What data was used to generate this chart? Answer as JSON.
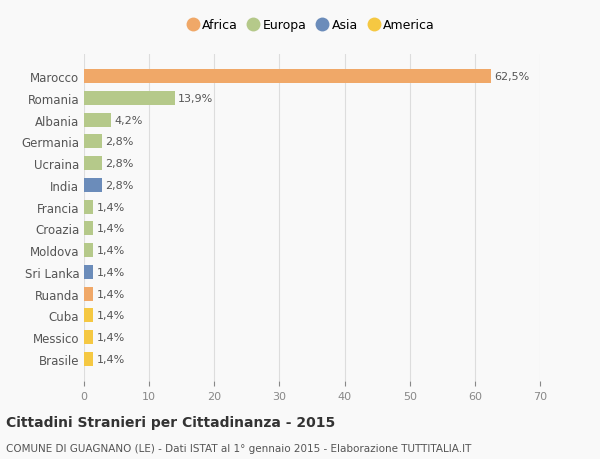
{
  "countries": [
    "Marocco",
    "Romania",
    "Albania",
    "Germania",
    "Ucraina",
    "India",
    "Francia",
    "Croazia",
    "Moldova",
    "Sri Lanka",
    "Ruanda",
    "Cuba",
    "Messico",
    "Brasile"
  ],
  "values": [
    62.5,
    13.9,
    4.2,
    2.8,
    2.8,
    2.8,
    1.4,
    1.4,
    1.4,
    1.4,
    1.4,
    1.4,
    1.4,
    1.4
  ],
  "labels": [
    "62,5%",
    "13,9%",
    "4,2%",
    "2,8%",
    "2,8%",
    "2,8%",
    "1,4%",
    "1,4%",
    "1,4%",
    "1,4%",
    "1,4%",
    "1,4%",
    "1,4%",
    "1,4%"
  ],
  "colors": [
    "#f0a868",
    "#b5c98a",
    "#b5c98a",
    "#b5c98a",
    "#b5c98a",
    "#6b8cba",
    "#b5c98a",
    "#b5c98a",
    "#b5c98a",
    "#6b8cba",
    "#f0a868",
    "#f5c842",
    "#f5c842",
    "#f5c842"
  ],
  "legend_names": [
    "Africa",
    "Europa",
    "Asia",
    "America"
  ],
  "legend_colors": [
    "#f0a868",
    "#b5c98a",
    "#6b8cba",
    "#f5c842"
  ],
  "xlim": [
    0,
    70
  ],
  "xticks": [
    0,
    10,
    20,
    30,
    40,
    50,
    60,
    70
  ],
  "title": "Cittadini Stranieri per Cittadinanza - 2015",
  "subtitle": "COMUNE DI GUAGNANO (LE) - Dati ISTAT al 1° gennaio 2015 - Elaborazione TUTTITALIA.IT",
  "bg_color": "#f9f9f9",
  "bar_height": 0.65
}
